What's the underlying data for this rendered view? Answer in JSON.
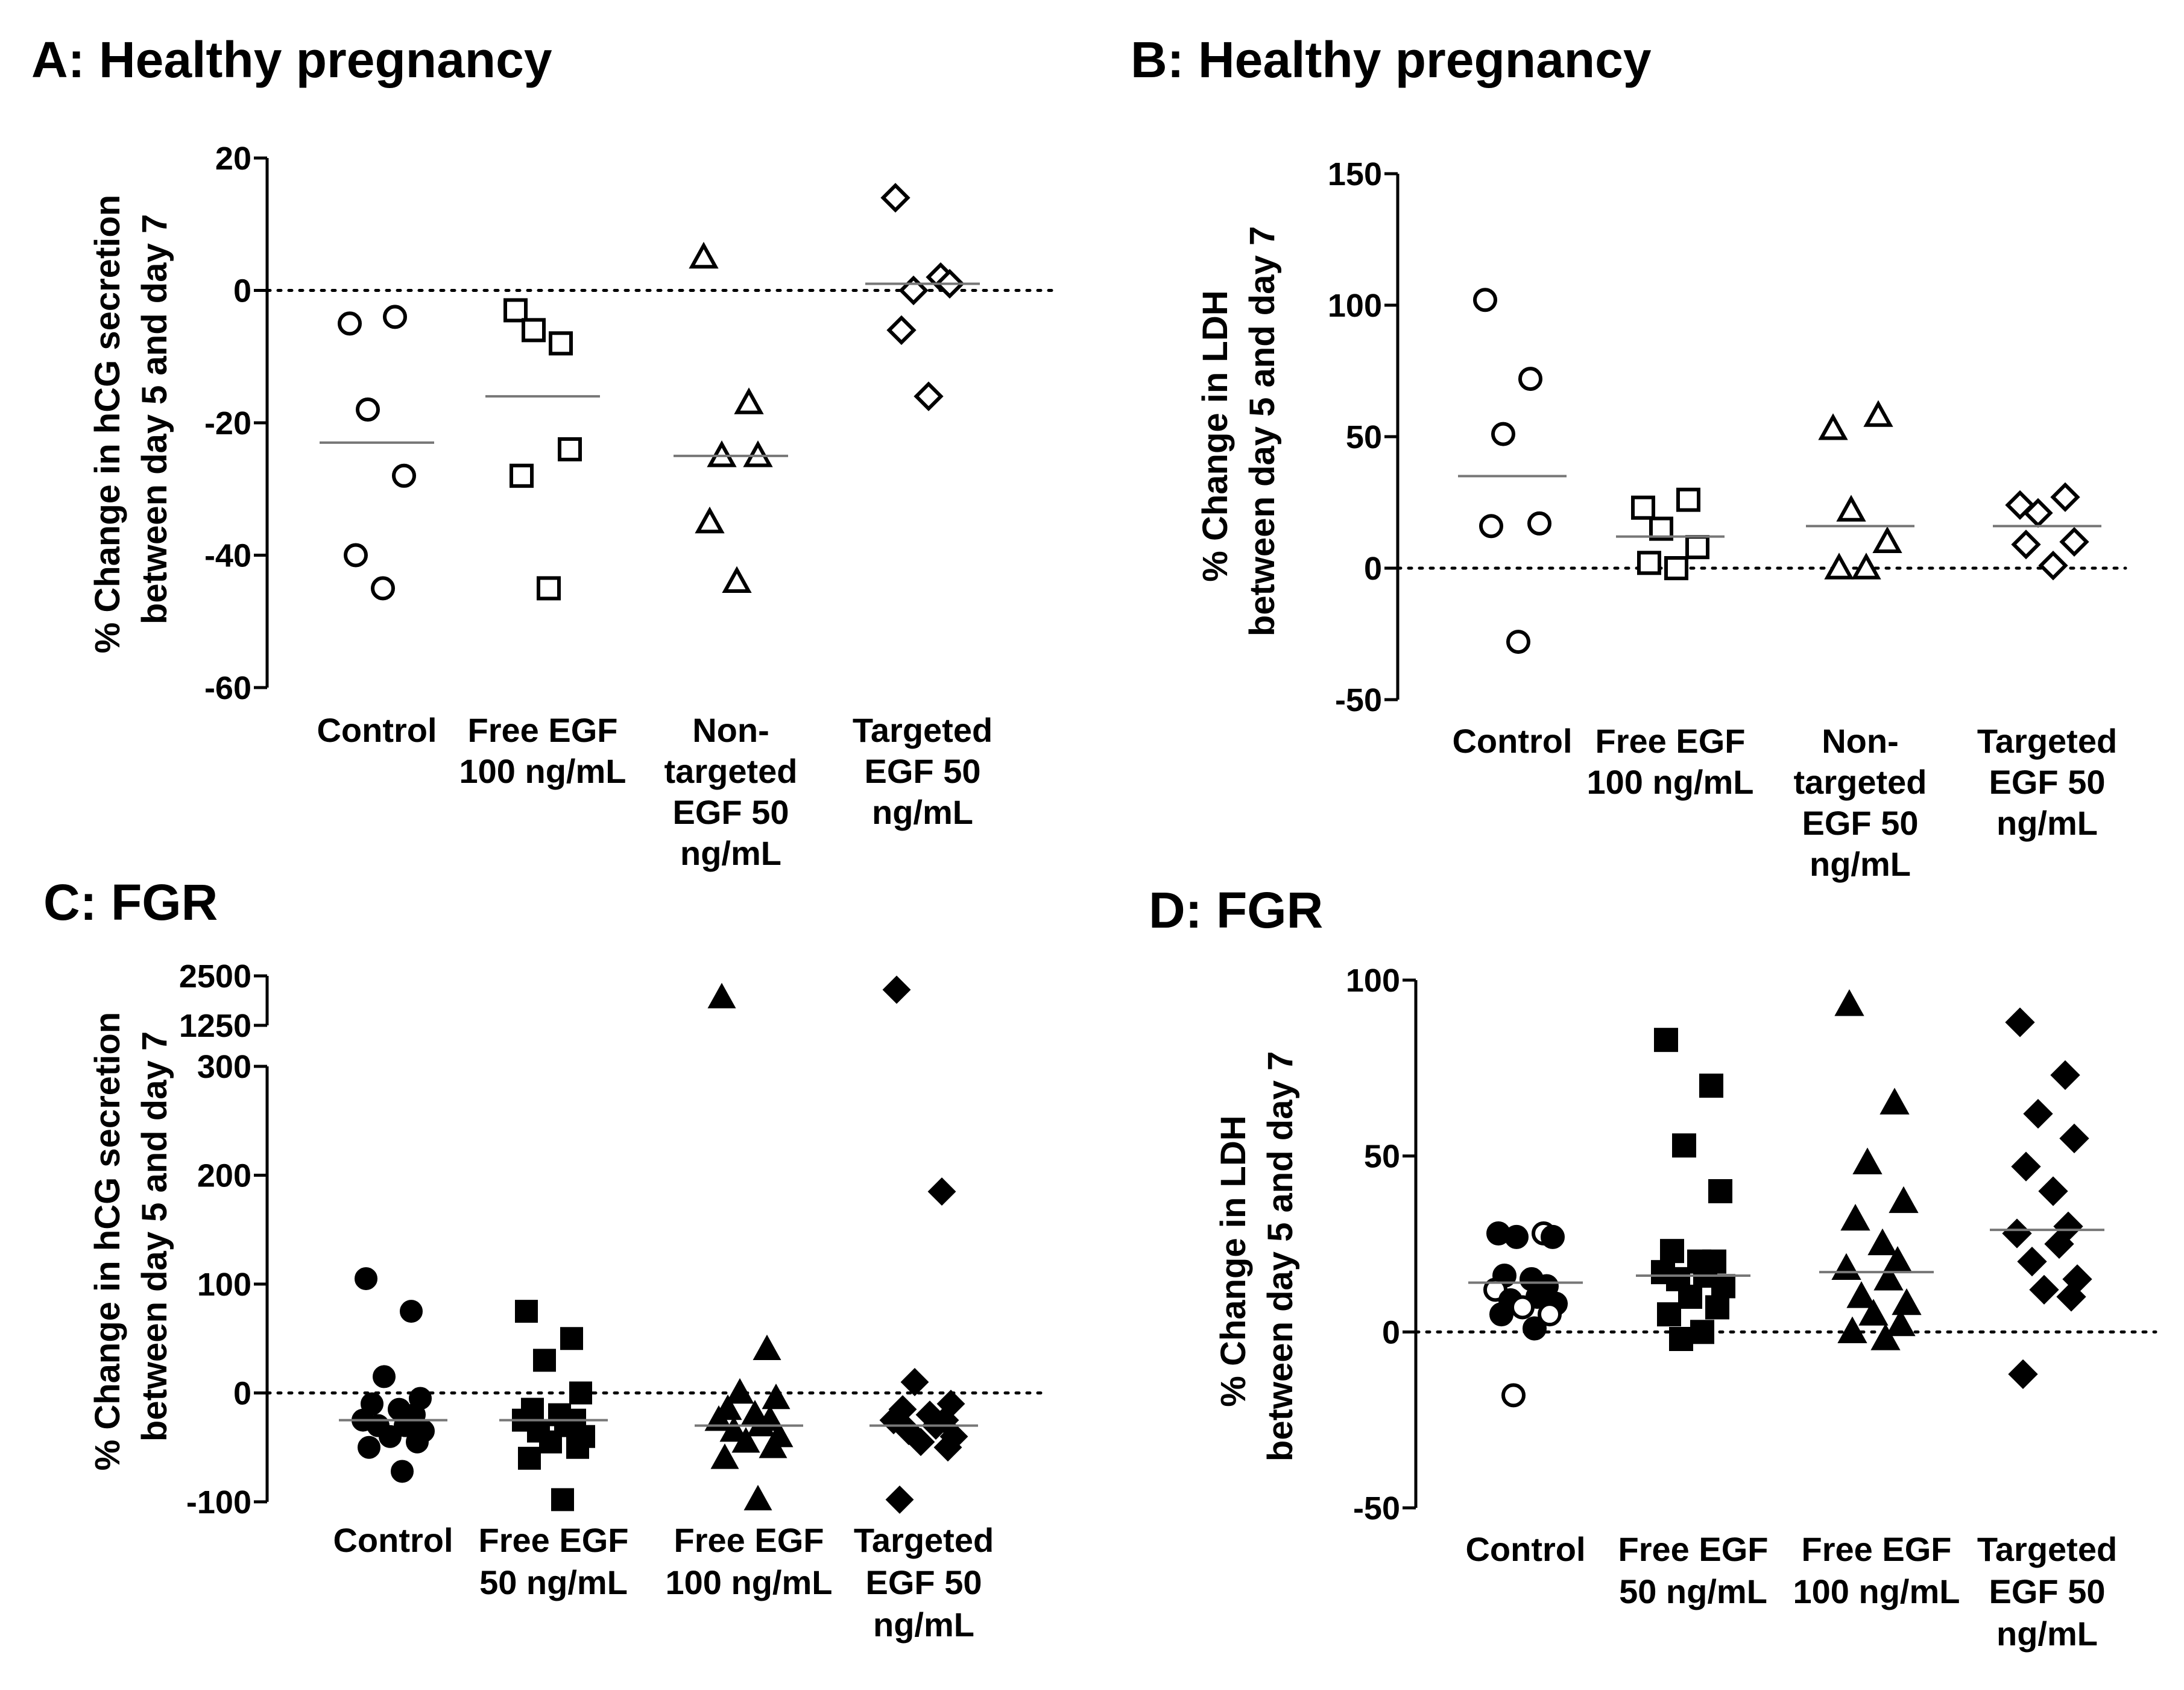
{
  "chart_data": [
    {
      "panel_id": "A",
      "type": "scatter",
      "title": "A: Healthy pregnancy",
      "ylabel": [
        "% Change in hCG secretion",
        "between day 5 and day 7"
      ],
      "ylim": [
        -60,
        20
      ],
      "yticks": [
        20,
        0,
        -20,
        -40,
        -60
      ],
      "reference_line": 0,
      "categories": [
        {
          "label": [
            "Control"
          ],
          "marker": "circle-open",
          "mean": -23,
          "values": [
            -5,
            -4,
            -18,
            -28,
            -40,
            -45
          ]
        },
        {
          "label": [
            "Free EGF",
            "100 ng/mL"
          ],
          "marker": "square-open",
          "mean": -16,
          "values": [
            -3,
            -8,
            -6,
            -24,
            -28,
            -45
          ]
        },
        {
          "label": [
            "Non-",
            "targeted",
            "EGF 50",
            "ng/mL"
          ],
          "marker": "triangle-open",
          "mean": -25,
          "values": [
            5,
            -17,
            -25,
            -25,
            -35,
            -44
          ]
        },
        {
          "label": [
            "Targeted",
            "EGF 50",
            "ng/mL"
          ],
          "marker": "diamond-open",
          "mean": 1,
          "values": [
            14,
            2,
            0,
            1,
            -6,
            -16
          ]
        }
      ]
    },
    {
      "panel_id": "B",
      "type": "scatter",
      "title": "B: Healthy pregnancy",
      "ylabel": [
        "% Change in LDH",
        "between day 5 and day 7"
      ],
      "ylim": [
        -50,
        150
      ],
      "yticks": [
        150,
        100,
        50,
        0,
        -50
      ],
      "reference_line": 0,
      "categories": [
        {
          "label": [
            "Control"
          ],
          "marker": "circle-open",
          "mean": 35,
          "values": [
            102,
            72,
            51,
            17,
            16,
            -28
          ]
        },
        {
          "label": [
            "Free EGF",
            "100 ng/mL"
          ],
          "marker": "square-open",
          "mean": 12,
          "values": [
            23,
            26,
            15,
            8,
            2,
            0
          ]
        },
        {
          "label": [
            "Non-",
            "targeted",
            "EGF 50",
            "ng/mL"
          ],
          "marker": "triangle-open",
          "mean": 16,
          "values": [
            53,
            58,
            22,
            10,
            0,
            0
          ]
        },
        {
          "label": [
            "Targeted",
            "EGF 50",
            "ng/mL"
          ],
          "marker": "diamond-open",
          "mean": 16,
          "values": [
            24,
            27,
            21,
            10,
            9,
            1
          ]
        }
      ]
    },
    {
      "panel_id": "C",
      "type": "scatter",
      "title": "C: FGR",
      "ylabel": [
        "% Change in hCG secretion",
        "between day 5 and day 7"
      ],
      "ylim": [
        -100,
        2500
      ],
      "axis_break": [
        300,
        1250
      ],
      "yticks": [
        2500,
        1250,
        300,
        200,
        100,
        0,
        -100
      ],
      "reference_line": 0,
      "categories": [
        {
          "label": [
            "Control"
          ],
          "marker": "circle-filled",
          "mean": -25,
          "values": [
            105,
            75,
            15,
            -5,
            -10,
            -15,
            -20,
            -25,
            -30,
            -30,
            -35,
            -40,
            -45,
            -50,
            -72
          ]
        },
        {
          "label": [
            "Free EGF",
            "50 ng/mL"
          ],
          "marker": "square-filled",
          "mean": -25,
          "values": [
            75,
            50,
            30,
            0,
            -15,
            -20,
            -25,
            -25,
            -30,
            -35,
            -40,
            -45,
            -50,
            -60,
            -98
          ]
        },
        {
          "label": [
            "Free EGF",
            "100 ng/mL"
          ],
          "marker": "triangle-filled",
          "mean": -30,
          "values": [
            1950,
            40,
            0,
            -5,
            -15,
            -20,
            -25,
            -25,
            -30,
            -35,
            -40,
            -45,
            -50,
            -60,
            -98
          ]
        },
        {
          "label": [
            "Targeted",
            "EGF 50",
            "ng/mL"
          ],
          "marker": "diamond-filled",
          "mean": -30,
          "values": [
            2150,
            185,
            10,
            -10,
            -15,
            -20,
            -25,
            -25,
            -30,
            -35,
            -40,
            -45,
            -50,
            -98
          ]
        }
      ]
    },
    {
      "panel_id": "D",
      "type": "scatter",
      "title": "D: FGR",
      "ylabel": [
        "% Change in LDH",
        "between day 5 and day 7"
      ],
      "ylim": [
        -50,
        100
      ],
      "yticks": [
        100,
        50,
        0,
        -50
      ],
      "reference_line": 0,
      "categories": [
        {
          "label": [
            "Control"
          ],
          "marker": "circle-mixed",
          "mean": 14,
          "values": [
            28,
            28,
            27,
            27,
            16,
            15,
            13,
            12,
            10,
            9,
            8,
            7,
            5,
            5,
            1,
            -18
          ],
          "open_indices": [
            1,
            7,
            11,
            12,
            15
          ]
        },
        {
          "label": [
            "Free EGF",
            "50 ng/mL"
          ],
          "marker": "square-filled",
          "mean": 16,
          "values": [
            83,
            70,
            53,
            40,
            23,
            20,
            20,
            17,
            16,
            15,
            13,
            10,
            7,
            5,
            0,
            -2
          ]
        },
        {
          "label": [
            "Free EGF",
            "100 ng/mL"
          ],
          "marker": "triangle-filled",
          "mean": 17,
          "values": [
            93,
            65,
            48,
            37,
            32,
            25,
            20,
            18,
            15,
            10,
            8,
            5,
            2,
            0,
            -2
          ]
        },
        {
          "label": [
            "Targeted",
            "EGF 50",
            "ng/mL"
          ],
          "marker": "diamond-filled",
          "mean": 29,
          "values": [
            88,
            73,
            62,
            55,
            47,
            40,
            30,
            28,
            25,
            20,
            15,
            12,
            10,
            -12
          ]
        }
      ]
    }
  ]
}
